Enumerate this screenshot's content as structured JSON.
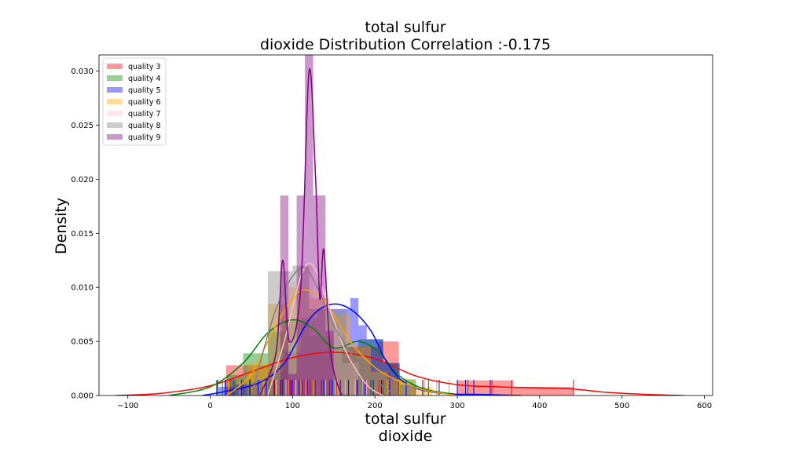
{
  "chart_data": {
    "type": "histogram-kde",
    "title": [
      "total sulfur",
      "dioxide Distribution Correlation :-0.175"
    ],
    "xlabel": [
      "total sulfur",
      "dioxide"
    ],
    "ylabel": "Density",
    "xlim": [
      -135,
      610
    ],
    "ylim": [
      0,
      0.0315
    ],
    "xticks": [
      -100,
      0,
      100,
      200,
      300,
      400,
      500,
      600
    ],
    "yticks": [
      0.0,
      0.005,
      0.01,
      0.015,
      0.02,
      0.025,
      0.03
    ],
    "ytick_labels": [
      "0.000",
      "0.005",
      "0.010",
      "0.015",
      "0.020",
      "0.025",
      "0.030"
    ],
    "legend_position": "upper-left",
    "series": [
      {
        "name": "quality 3",
        "color": "#ff0000",
        "bins": [
          [
            19,
            56,
            0.0028
          ],
          [
            56,
            93,
            0.0028
          ],
          [
            93,
            130,
            0.0039
          ],
          [
            130,
            168,
            0.0039
          ],
          [
            168,
            205,
            0.0045
          ],
          [
            205,
            229,
            0.005
          ],
          [
            229,
            300,
            0.0
          ],
          [
            300,
            368,
            0.0014
          ],
          [
            368,
            441,
            0.0008
          ]
        ],
        "kde": [
          [
            -115,
            0.0
          ],
          [
            -60,
            0.0002
          ],
          [
            0,
            0.0009
          ],
          [
            50,
            0.0022
          ],
          [
            100,
            0.0035
          ],
          [
            150,
            0.004
          ],
          [
            200,
            0.0034
          ],
          [
            250,
            0.0018
          ],
          [
            300,
            0.001
          ],
          [
            350,
            0.0008
          ],
          [
            400,
            0.0007
          ],
          [
            440,
            0.0006
          ],
          [
            480,
            0.0003
          ],
          [
            530,
            0.0001
          ],
          [
            575,
            0.0
          ]
        ],
        "rug": [
          19,
          25,
          49,
          77,
          96,
          104,
          115,
          128,
          140,
          153,
          179,
          190,
          205,
          229,
          300,
          313,
          342,
          366,
          441
        ]
      },
      {
        "name": "quality 4",
        "color": "#008000",
        "bins": [
          [
            20,
            40,
            0.0019
          ],
          [
            40,
            70,
            0.0039
          ],
          [
            70,
            90,
            0.0059
          ],
          [
            90,
            120,
            0.007
          ],
          [
            120,
            150,
            0.0055
          ],
          [
            150,
            180,
            0.0045
          ],
          [
            180,
            210,
            0.0052
          ],
          [
            210,
            230,
            0.003
          ],
          [
            230,
            250,
            0.0015
          ]
        ],
        "kde": [
          [
            -50,
            0.0
          ],
          [
            0,
            0.0008
          ],
          [
            40,
            0.003
          ],
          [
            70,
            0.0058
          ],
          [
            100,
            0.007
          ],
          [
            125,
            0.0062
          ],
          [
            150,
            0.0044
          ],
          [
            180,
            0.005
          ],
          [
            205,
            0.004
          ],
          [
            230,
            0.0018
          ],
          [
            260,
            0.0006
          ],
          [
            300,
            0.0001
          ],
          [
            320,
            0.0
          ]
        ],
        "rug": [
          9,
          15,
          30,
          40,
          49,
          60,
          72,
          86,
          98,
          110,
          125,
          138,
          150,
          168,
          180,
          195,
          210,
          230,
          245,
          265
        ]
      },
      {
        "name": "quality 5",
        "color": "#0000ff",
        "bins": [
          [
            10,
            30,
            0.0008
          ],
          [
            30,
            50,
            0.001
          ],
          [
            50,
            70,
            0.0012
          ],
          [
            70,
            90,
            0.0022
          ],
          [
            90,
            110,
            0.0041
          ],
          [
            110,
            130,
            0.0072
          ],
          [
            130,
            150,
            0.008
          ],
          [
            150,
            170,
            0.008
          ],
          [
            170,
            180,
            0.009
          ],
          [
            180,
            190,
            0.0065
          ],
          [
            190,
            210,
            0.0052
          ],
          [
            210,
            230,
            0.003
          ],
          [
            230,
            250,
            0.001
          ]
        ],
        "kde": [
          [
            -10,
            0.0
          ],
          [
            20,
            0.0004
          ],
          [
            60,
            0.0012
          ],
          [
            90,
            0.003
          ],
          [
            120,
            0.007
          ],
          [
            145,
            0.0084
          ],
          [
            170,
            0.008
          ],
          [
            195,
            0.006
          ],
          [
            215,
            0.003
          ],
          [
            240,
            0.001
          ],
          [
            280,
            0.0002
          ],
          [
            330,
            0.0001
          ],
          [
            378,
            0.0
          ]
        ],
        "rug": [
          8,
          18,
          28,
          38,
          48,
          58,
          68,
          78,
          88,
          98,
          108,
          118,
          128,
          138,
          148,
          158,
          168,
          178,
          188,
          198,
          208,
          218,
          238,
          258,
          278,
          300,
          310,
          320,
          340
        ]
      },
      {
        "name": "quality 6",
        "color": "#ffa500",
        "bins": [
          [
            45,
            70,
            0.003
          ],
          [
            70,
            95,
            0.0085
          ],
          [
            95,
            120,
            0.01
          ],
          [
            120,
            145,
            0.009
          ],
          [
            145,
            170,
            0.0075
          ],
          [
            170,
            195,
            0.0045
          ],
          [
            195,
            215,
            0.0022
          ],
          [
            215,
            240,
            0.0015
          ],
          [
            240,
            270,
            0.0008
          ]
        ],
        "kde": [
          [
            20,
            0.0
          ],
          [
            50,
            0.002
          ],
          [
            80,
            0.0065
          ],
          [
            110,
            0.0097
          ],
          [
            140,
            0.0085
          ],
          [
            170,
            0.005
          ],
          [
            200,
            0.0026
          ],
          [
            230,
            0.0013
          ],
          [
            260,
            0.0005
          ],
          [
            300,
            0.0
          ]
        ],
        "rug": [
          22,
          36,
          50,
          65,
          80,
          95,
          110,
          125,
          140,
          155,
          170,
          185,
          200,
          215,
          230,
          245,
          260,
          275,
          290
        ]
      },
      {
        "name": "quality 7",
        "color": "#ffc0cb",
        "bins": [
          [
            95,
            110,
            0.0105
          ],
          [
            110,
            125,
            0.012
          ],
          [
            125,
            140,
            0.009
          ],
          [
            140,
            160,
            0.006
          ],
          [
            160,
            180,
            0.003
          ]
        ],
        "kde": [
          [
            70,
            0.0
          ],
          [
            90,
            0.005
          ],
          [
            110,
            0.011
          ],
          [
            125,
            0.012
          ],
          [
            145,
            0.008
          ],
          [
            165,
            0.004
          ],
          [
            190,
            0.001
          ],
          [
            210,
            0.0
          ]
        ],
        "rug": [
          80,
          92,
          104,
          116,
          128,
          140,
          152,
          164,
          176,
          190
        ]
      },
      {
        "name": "quality 8",
        "color": "#808080",
        "bins": [
          [
            70,
            85,
            0.0115
          ],
          [
            85,
            100,
            0.0115
          ],
          [
            100,
            120,
            0.012
          ],
          [
            120,
            140,
            0.008
          ],
          [
            140,
            165,
            0.008
          ],
          [
            165,
            190,
            0.004
          ],
          [
            190,
            210,
            0.002
          ]
        ],
        "kde": [
          [
            50,
            0.0
          ],
          [
            80,
            0.008
          ],
          [
            110,
            0.0118
          ],
          [
            130,
            0.01
          ],
          [
            150,
            0.0065
          ],
          [
            180,
            0.003
          ],
          [
            210,
            0.0008
          ],
          [
            230,
            0.0
          ]
        ],
        "rug": [
          60,
          75,
          90,
          105,
          120,
          135,
          150,
          165,
          180,
          200
        ]
      },
      {
        "name": "quality 9",
        "color": "#800080",
        "bins": [
          [
            85,
            95,
            0.0185
          ],
          [
            95,
            105,
            0.002
          ],
          [
            105,
            115,
            0.0185
          ],
          [
            115,
            125,
            0.0315
          ],
          [
            125,
            140,
            0.0185
          ],
          [
            140,
            150,
            0.006
          ]
        ],
        "kde": [
          [
            60,
            0.0
          ],
          [
            80,
            0.004
          ],
          [
            88,
            0.0125
          ],
          [
            96,
            0.005
          ],
          [
            110,
            0.01
          ],
          [
            120,
            0.03
          ],
          [
            128,
            0.02
          ],
          [
            133,
            0.009
          ],
          [
            138,
            0.0135
          ],
          [
            146,
            0.004
          ],
          [
            160,
            0.0
          ],
          [
            170,
            0.0
          ]
        ],
        "rug": [
          85,
          100,
          112,
          118,
          121,
          128,
          135,
          145
        ]
      }
    ]
  }
}
